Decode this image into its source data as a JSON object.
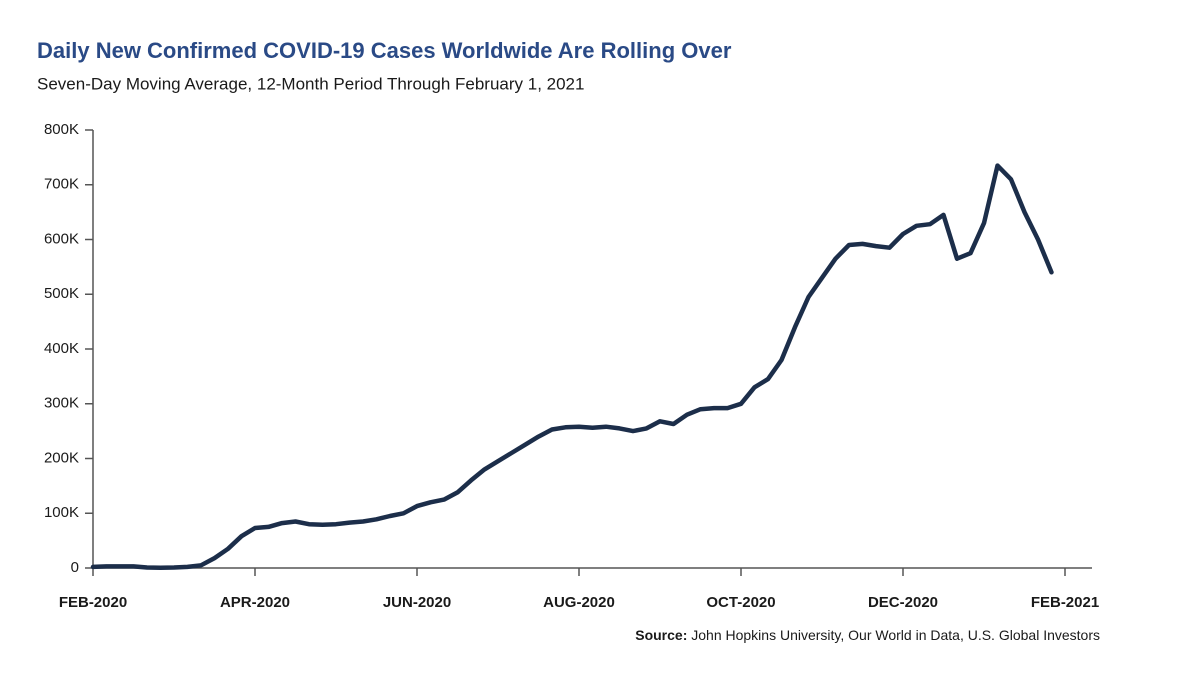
{
  "chart_data": {
    "type": "line",
    "title": "Daily New Confirmed COVID-19 Cases Worldwide Are Rolling Over",
    "subtitle": "Seven-Day Moving Average, 12-Month Period Through February 1, 2021",
    "source_label": "Source:",
    "source": "John Hopkins University, Our World in Data, U.S. Global Investors",
    "categories": [
      "FEB-2020",
      null,
      null,
      null,
      null,
      null,
      null,
      null,
      null,
      null,
      null,
      null,
      "APR-2020",
      null,
      null,
      null,
      null,
      null,
      null,
      null,
      null,
      null,
      null,
      null,
      "JUN-2020",
      null,
      null,
      null,
      null,
      null,
      null,
      null,
      null,
      null,
      null,
      null,
      "AUG-2020",
      null,
      null,
      null,
      null,
      null,
      null,
      null,
      null,
      null,
      null,
      null,
      "OCT-2020",
      null,
      null,
      null,
      null,
      null,
      null,
      null,
      null,
      null,
      null,
      null,
      "DEC-2020",
      null,
      null,
      null,
      null,
      null,
      null,
      null,
      null,
      null,
      null,
      null,
      "FEB-2021"
    ],
    "series": [
      {
        "name": "Daily new confirmed cases (7-day average)",
        "color": "#1c2e4a",
        "values": [
          2000,
          3000,
          3000,
          3000,
          1000,
          500,
          1000,
          2000,
          5000,
          18000,
          35000,
          58000,
          73000,
          75000,
          82000,
          85000,
          80000,
          79000,
          80000,
          83000,
          85000,
          89000,
          95000,
          100000,
          113000,
          120000,
          125000,
          138000,
          160000,
          180000,
          195000,
          210000,
          225000,
          240000,
          253000,
          257000,
          258000,
          256000,
          258000,
          255000,
          250000,
          255000,
          268000,
          263000,
          280000,
          290000,
          292000,
          292000,
          300000,
          330000,
          345000,
          380000,
          440000,
          495000,
          530000,
          565000,
          590000,
          592000,
          588000,
          585000,
          610000,
          625000,
          628000,
          645000,
          565000,
          575000,
          630000,
          735000,
          710000,
          650000,
          600000,
          540000,
          null
        ]
      }
    ],
    "ylim": [
      0,
      800000
    ],
    "yticks": [
      0,
      {
        "value": 100000,
        "label": "100K"
      },
      {
        "value": 200000,
        "label": "200K"
      },
      {
        "value": 300000,
        "label": "300K"
      },
      {
        "value": 400000,
        "label": "400K"
      },
      {
        "value": 500000,
        "label": "500K"
      },
      {
        "value": 600000,
        "label": "600K"
      },
      {
        "value": 700000,
        "label": "700K"
      },
      {
        "value": 800000,
        "label": "800K"
      }
    ],
    "grid": false
  }
}
